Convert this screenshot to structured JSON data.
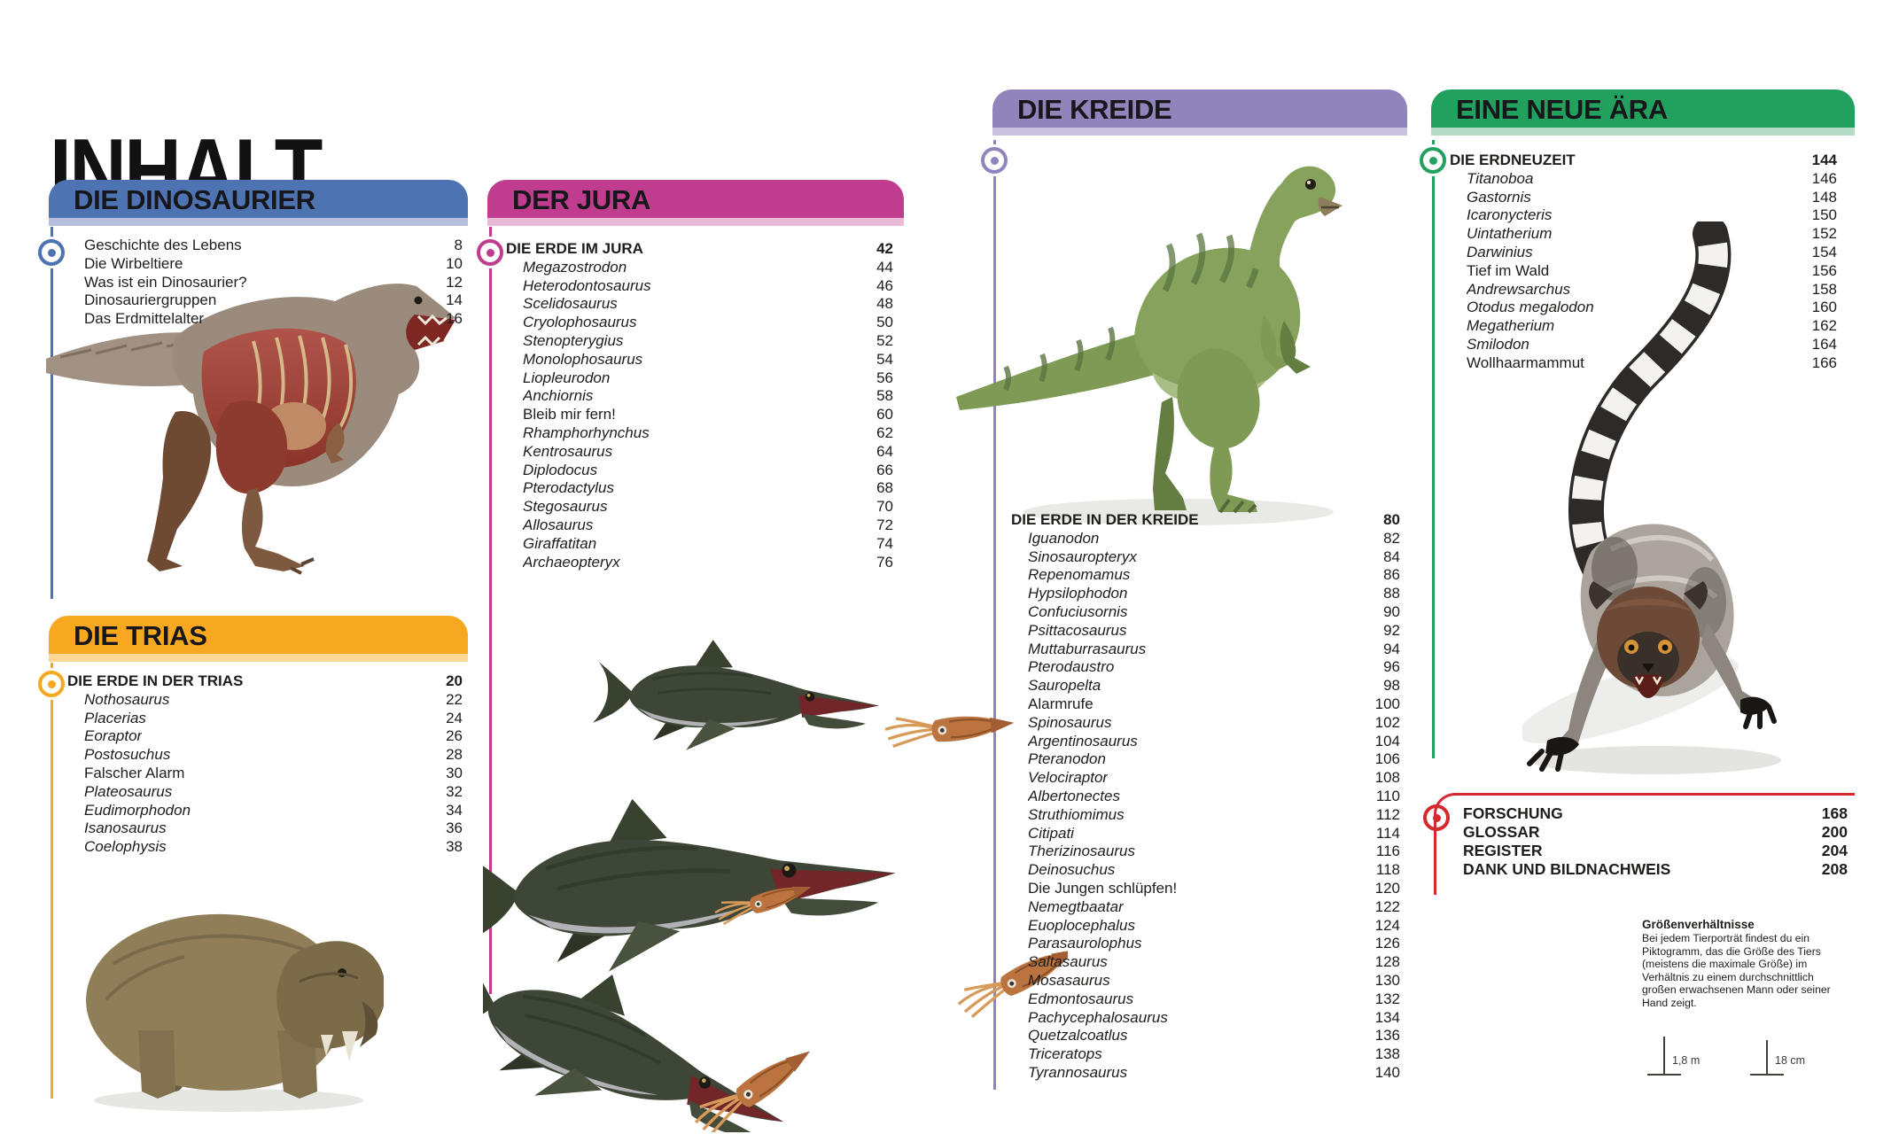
{
  "page_title": "INHALT",
  "sections": [
    {
      "id": "dino",
      "title": "DIE DINOSAURIER",
      "color": "#4E73B2",
      "light": "#B5BEDD",
      "entries": [
        {
          "label": "Geschichte des Lebens",
          "page": "8"
        },
        {
          "label": "Die Wirbeltiere",
          "page": "10"
        },
        {
          "label": "Was ist ein Dinosaurier?",
          "page": "12"
        },
        {
          "label": "Dinosauriergruppen",
          "page": "14"
        },
        {
          "label": "Das Erdmittelalter",
          "page": "16"
        }
      ]
    },
    {
      "id": "trias",
      "title": "DIE TRIAS",
      "color": "#F5A820",
      "light": "#FBD694",
      "entries": [
        {
          "label": "DIE ERDE IN DER TRIAS",
          "page": "20",
          "lead": true
        },
        {
          "label": "Nothosaurus",
          "page": "22",
          "italic": true
        },
        {
          "label": "Placerias",
          "page": "24",
          "italic": true
        },
        {
          "label": "Eoraptor",
          "page": "26",
          "italic": true
        },
        {
          "label": "Postosuchus",
          "page": "28",
          "italic": true
        },
        {
          "label": "Falscher Alarm",
          "page": "30"
        },
        {
          "label": "Plateosaurus",
          "page": "32",
          "italic": true
        },
        {
          "label": "Eudimorphodon",
          "page": "34",
          "italic": true
        },
        {
          "label": "Isanosaurus",
          "page": "36",
          "italic": true
        },
        {
          "label": "Coelophysis",
          "page": "38",
          "italic": true
        }
      ]
    },
    {
      "id": "jura",
      "title": "DER JURA",
      "color": "#BF3C8E",
      "light": "#EBBAD8",
      "entries": [
        {
          "label": "DIE ERDE IM JURA",
          "page": "42",
          "lead": true
        },
        {
          "label": "Megazostrodon",
          "page": "44",
          "italic": true
        },
        {
          "label": "Heterodontosaurus",
          "page": "46",
          "italic": true
        },
        {
          "label": "Scelidosaurus",
          "page": "48",
          "italic": true
        },
        {
          "label": "Cryolophosaurus",
          "page": "50",
          "italic": true
        },
        {
          "label": "Stenopterygius",
          "page": "52",
          "italic": true
        },
        {
          "label": "Monolophosaurus",
          "page": "54",
          "italic": true
        },
        {
          "label": "Liopleurodon",
          "page": "56",
          "italic": true
        },
        {
          "label": "Anchiornis",
          "page": "58",
          "italic": true
        },
        {
          "label": "Bleib mir fern!",
          "page": "60"
        },
        {
          "label": "Rhamphorhynchus",
          "page": "62",
          "italic": true
        },
        {
          "label": "Kentrosaurus",
          "page": "64",
          "italic": true
        },
        {
          "label": "Diplodocus",
          "page": "66",
          "italic": true
        },
        {
          "label": "Pterodactylus",
          "page": "68",
          "italic": true
        },
        {
          "label": "Stegosaurus",
          "page": "70",
          "italic": true
        },
        {
          "label": "Allosaurus",
          "page": "72",
          "italic": true
        },
        {
          "label": "Giraffatitan",
          "page": "74",
          "italic": true
        },
        {
          "label": "Archaeopteryx",
          "page": "76",
          "italic": true
        }
      ]
    },
    {
      "id": "kreide",
      "title": "DIE KREIDE",
      "color": "#9184BC",
      "light": "#CBC2DF",
      "entries": [
        {
          "label": "DIE ERDE IN DER KREIDE",
          "page": "80",
          "lead": true
        },
        {
          "label": "Iguanodon",
          "page": "82",
          "italic": true
        },
        {
          "label": "Sinosauropteryx",
          "page": "84",
          "italic": true
        },
        {
          "label": "Repenomamus",
          "page": "86",
          "italic": true
        },
        {
          "label": "Hypsilophodon",
          "page": "88",
          "italic": true
        },
        {
          "label": "Confuciusornis",
          "page": "90",
          "italic": true
        },
        {
          "label": "Psittacosaurus",
          "page": "92",
          "italic": true
        },
        {
          "label": "Muttaburrasaurus",
          "page": "94",
          "italic": true
        },
        {
          "label": "Pterodaustro",
          "page": "96",
          "italic": true
        },
        {
          "label": "Sauropelta",
          "page": "98",
          "italic": true
        },
        {
          "label": "Alarmrufe",
          "page": "100"
        },
        {
          "label": "Spinosaurus",
          "page": "102",
          "italic": true
        },
        {
          "label": "Argentinosaurus",
          "page": "104",
          "italic": true
        },
        {
          "label": "Pteranodon",
          "page": "106",
          "italic": true
        },
        {
          "label": "Velociraptor",
          "page": "108",
          "italic": true
        },
        {
          "label": "Albertonectes",
          "page": "110",
          "italic": true
        },
        {
          "label": "Struthiomimus",
          "page": "112",
          "italic": true
        },
        {
          "label": "Citipati",
          "page": "114",
          "italic": true
        },
        {
          "label": "Therizinosaurus",
          "page": "116",
          "italic": true
        },
        {
          "label": "Deinosuchus",
          "page": "118",
          "italic": true
        },
        {
          "label": "Die Jungen schlüpfen!",
          "page": "120"
        },
        {
          "label": "Nemegtbaatar",
          "page": "122",
          "italic": true
        },
        {
          "label": "Euoplocephalus",
          "page": "124",
          "italic": true
        },
        {
          "label": "Parasaurolophus",
          "page": "126",
          "italic": true
        },
        {
          "label": "Saltasaurus",
          "page": "128",
          "italic": true
        },
        {
          "label": "Mosasaurus",
          "page": "130",
          "italic": true
        },
        {
          "label": "Edmontosaurus",
          "page": "132",
          "italic": true
        },
        {
          "label": "Pachycephalosaurus",
          "page": "134",
          "italic": true
        },
        {
          "label": "Quetzalcoatlus",
          "page": "136",
          "italic": true
        },
        {
          "label": "Triceratops",
          "page": "138",
          "italic": true
        },
        {
          "label": "Tyrannosaurus",
          "page": "140",
          "italic": true
        }
      ]
    },
    {
      "id": "aera",
      "title": "EINE NEUE ÄRA",
      "color": "#21A05E",
      "light": "#B4DBC4",
      "entries": [
        {
          "label": "DIE ERDNEUZEIT",
          "page": "144",
          "lead": true
        },
        {
          "label": "Titanoboa",
          "page": "146",
          "italic": true
        },
        {
          "label": "Gastornis",
          "page": "148",
          "italic": true
        },
        {
          "label": "Icaronycteris",
          "page": "150",
          "italic": true
        },
        {
          "label": "Uintatherium",
          "page": "152",
          "italic": true
        },
        {
          "label": "Darwinius",
          "page": "154",
          "italic": true
        },
        {
          "label": "Tief im Wald",
          "page": "156"
        },
        {
          "label": "Andrewsarchus",
          "page": "158",
          "italic": true
        },
        {
          "label": "Otodus megalodon",
          "page": "160",
          "italic": true
        },
        {
          "label": "Megatherium",
          "page": "162",
          "italic": true
        },
        {
          "label": "Smilodon",
          "page": "164",
          "italic": true
        },
        {
          "label": "Wollhaarmammut",
          "page": "166"
        }
      ]
    },
    {
      "id": "back",
      "title": "",
      "color": "#D5292E",
      "light": "#D5292E",
      "entries": [
        {
          "label": "FORSCHUNG",
          "page": "168",
          "lead": true
        },
        {
          "label": "GLOSSAR",
          "page": "200",
          "lead": true
        },
        {
          "label": "REGISTER",
          "page": "204",
          "lead": true
        },
        {
          "label": "DANK UND BILDNACHWEIS",
          "page": "208",
          "lead": true
        }
      ]
    }
  ],
  "size_note": {
    "heading": "Größenverhältnisse",
    "body": "Bei jedem Tierporträt findest du ein Piktogramm, das die Größe des Tiers (meistens die maximale Größe) im Verhältnis zu einem durchschnittlich großen erwachsenen Mann oder seiner Hand zeigt.",
    "man_label": "1,8 m",
    "hand_label": "18 cm"
  },
  "illustrations": {
    "trex_anatomy": {
      "skin": "#9a8b7c",
      "muscle": "#a5453a",
      "bone": "#d9c490"
    },
    "placerias": {
      "body": "#8f7e58",
      "head": "#7b6b48",
      "tusk": "#e8e2d2"
    },
    "ichthyosaurs": {
      "body": "#3e4637",
      "belly": "#c6c4cc",
      "squid": "#bb7440"
    },
    "green_dinosaur": {
      "body": "#86a25c",
      "stripe": "#5a7440",
      "belly": "#a9bd86"
    },
    "lemur": {
      "fur": "#aaa49c",
      "head": "#6d4a38",
      "tail_dark": "#2d2a27",
      "eye": "#d29339"
    }
  }
}
